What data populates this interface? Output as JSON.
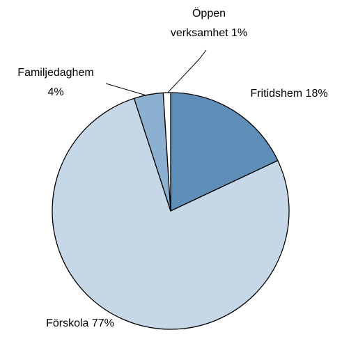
{
  "chart_data": {
    "type": "pie",
    "value_labels": [
      "Fritidshem 18%",
      "Förskola 77%",
      "Familjedaghem\n4%",
      "Öppen\nverksamhet 1%"
    ],
    "values": [
      18,
      77,
      4,
      1
    ],
    "colors": [
      "#5f8fb8",
      "#c6d8e7",
      "#8cb0cf",
      "#ffffff"
    ]
  }
}
